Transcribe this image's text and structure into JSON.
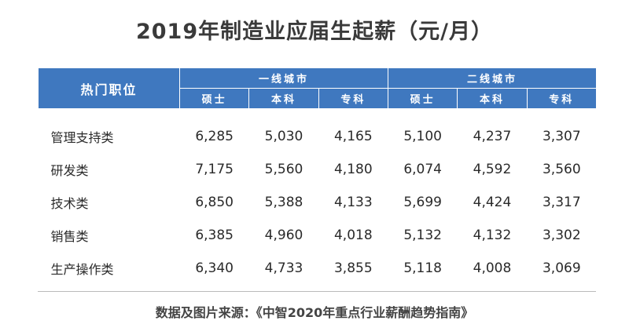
{
  "title": "2019年制造业应届生起薪（元/月）",
  "table": {
    "header_job": "热门职位",
    "groups": [
      "一线城市",
      "二线城市"
    ],
    "subheaders": [
      "硕士",
      "本科",
      "专科",
      "硕士",
      "本科",
      "专科"
    ],
    "rows": [
      {
        "name": "管理支持类",
        "values": [
          "6,285",
          "5,030",
          "4,165",
          "5,100",
          "4,237",
          "3,307"
        ]
      },
      {
        "name": "研发类",
        "values": [
          "7,175",
          "5,560",
          "4,180",
          "6,074",
          "4,592",
          "3,560"
        ]
      },
      {
        "name": "技术类",
        "values": [
          "6,850",
          "5,388",
          "4,133",
          "5,699",
          "4,424",
          "3,317"
        ]
      },
      {
        "name": "销售类",
        "values": [
          "6,385",
          "4,960",
          "4,018",
          "5,132",
          "4,132",
          "3,302"
        ]
      },
      {
        "name": "生产操作类",
        "values": [
          "6,340",
          "4,733",
          "3,855",
          "5,118",
          "4,008",
          "3,069"
        ]
      }
    ]
  },
  "source": "数据及图片来源：《中智2020年重点行业薪酬趋势指南》",
  "colors": {
    "header_bg": "#3f78bf",
    "header_text": "#ffffff"
  }
}
